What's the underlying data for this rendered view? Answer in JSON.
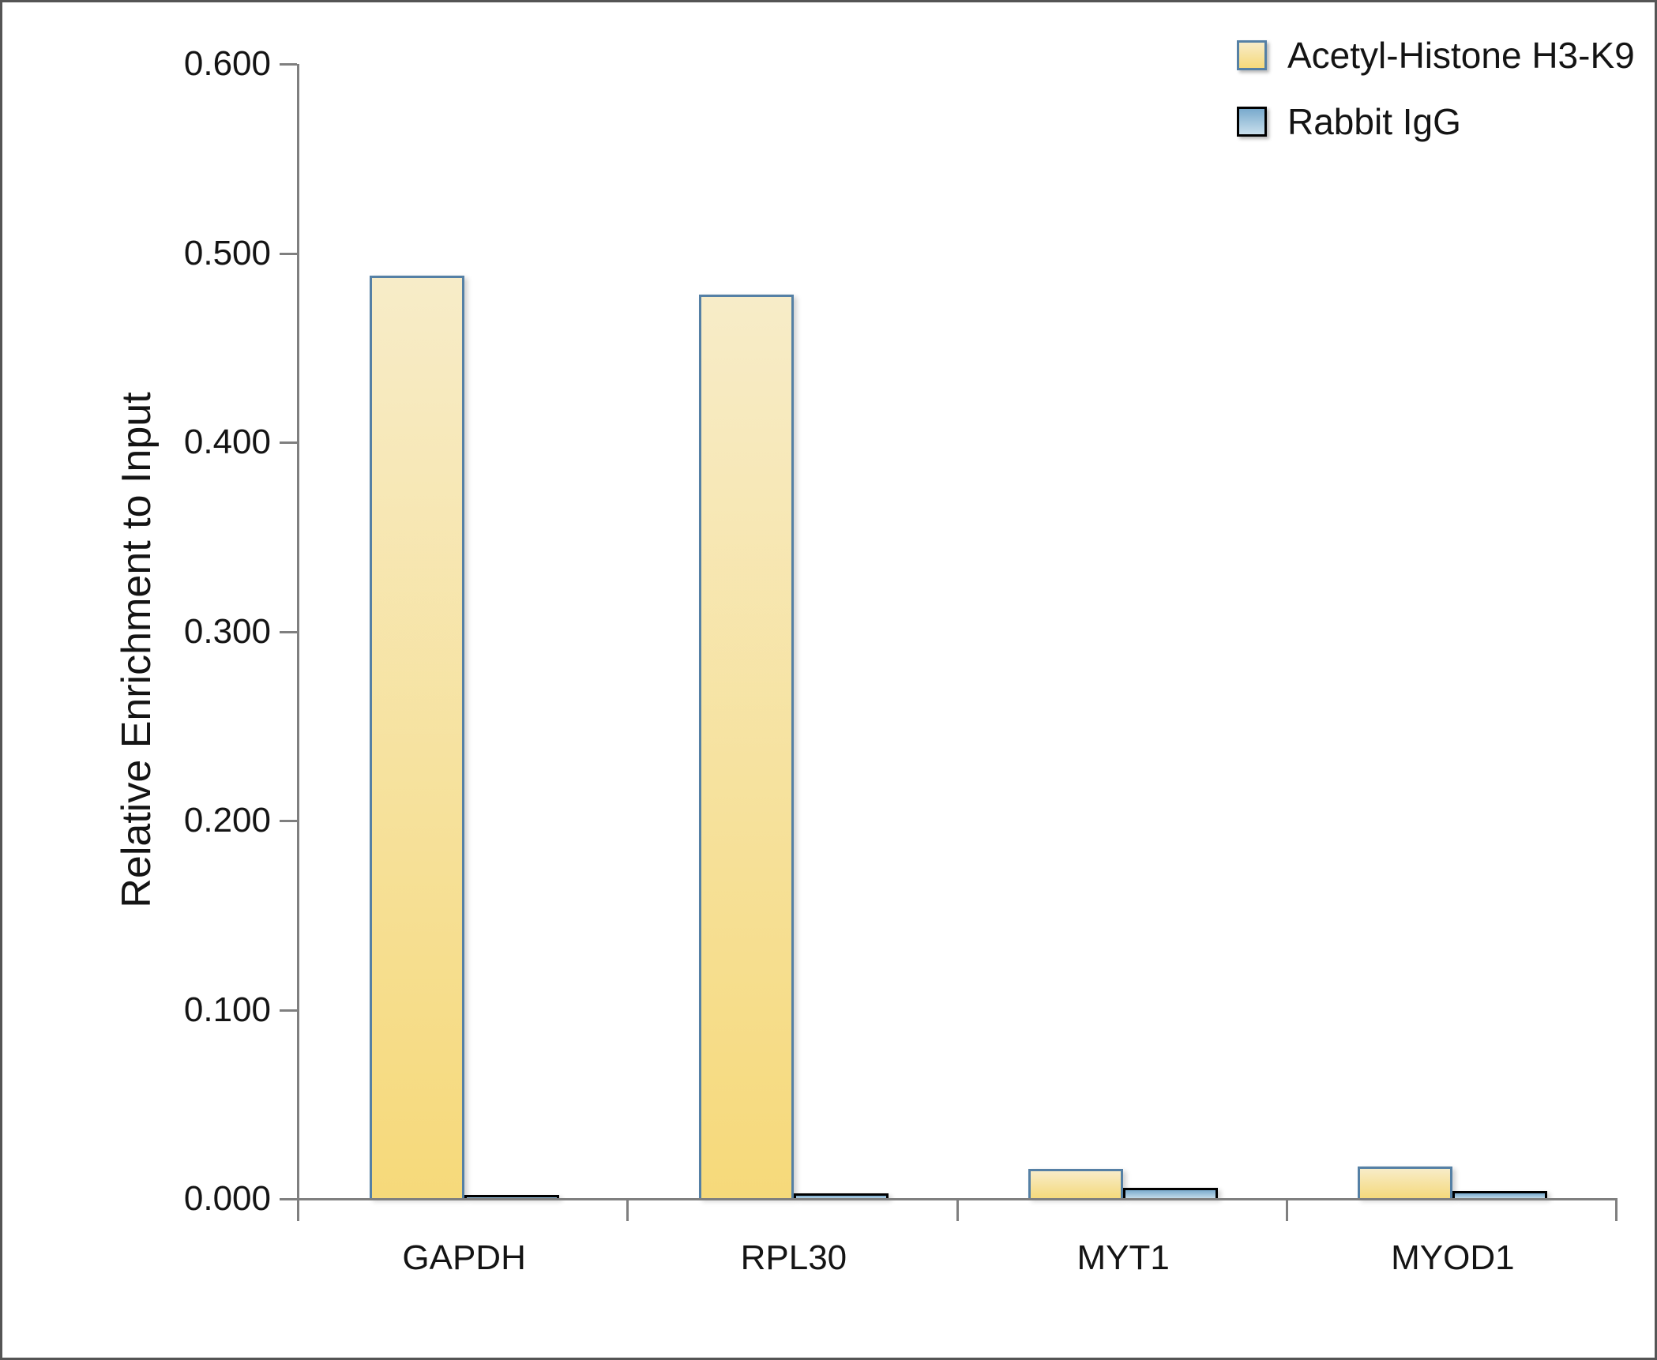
{
  "chart_data": {
    "type": "bar",
    "title": "",
    "xlabel": "",
    "ylabel": "Relative Enrichment to Input",
    "categories": [
      "GAPDH",
      "RPL30",
      "MYT1",
      "MYOD1"
    ],
    "series": [
      {
        "name": "Acetyl-Histone H3-K9",
        "values": [
          0.488,
          0.478,
          0.016,
          0.017
        ],
        "fill_top": "#F7ECC8",
        "fill_bottom": "#F6D97A",
        "border_color": "#5580A5"
      },
      {
        "name": "Rabbit IgG",
        "values": [
          0.002,
          0.003,
          0.006,
          0.004
        ],
        "fill_top": "#79AACD",
        "fill_bottom": "#C9DFEC",
        "border_color": "#000000"
      }
    ],
    "ylim": [
      0,
      0.6
    ],
    "ytick_step": 0.1,
    "ytick_labels": [
      "0.000",
      "0.100",
      "0.200",
      "0.300",
      "0.400",
      "0.500",
      "0.600"
    ],
    "grid": false,
    "legend_position": "top-right",
    "axis_color": "#7F7F7F",
    "text_color": "#141414"
  }
}
